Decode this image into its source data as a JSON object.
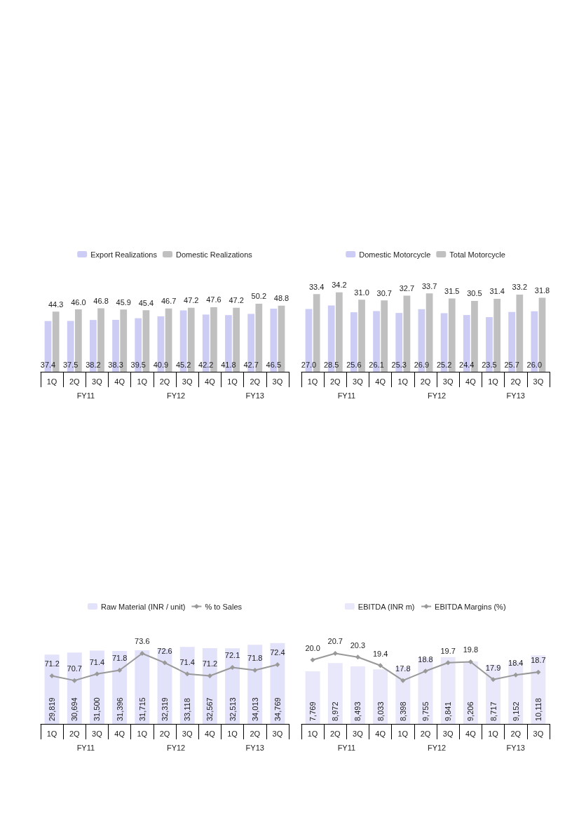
{
  "chart_data": [
    {
      "type": "bar",
      "legend": "top",
      "annotations": [
        "FY11",
        "FY12",
        "FY13"
      ],
      "categories": [
        "1Q",
        "2Q",
        "3Q",
        "4Q",
        "1Q",
        "2Q",
        "3Q",
        "4Q",
        "1Q",
        "2Q",
        "3Q"
      ],
      "series": [
        {
          "name": "Export Realizations",
          "color": "#ccccf5",
          "values": [
            37.4,
            37.5,
            38.2,
            38.3,
            39.5,
            40.9,
            45.2,
            42.2,
            41.8,
            42.7,
            46.5
          ],
          "value_labels": [
            "37.4",
            "37.5",
            "38.2",
            "38.3",
            "39.5",
            "40.9",
            "45.2",
            "42.2",
            "41.8",
            "42.7",
            "46.5"
          ]
        },
        {
          "name": "Domestic Realizations",
          "color": "#c0c0c0",
          "values": [
            44.3,
            46.0,
            46.8,
            45.9,
            45.4,
            46.7,
            47.2,
            47.6,
            47.2,
            50.2,
            48.8
          ],
          "value_labels": [
            "44.3",
            "46.0",
            "46.8",
            "45.9",
            "45.4",
            "46.7",
            "47.2",
            "47.6",
            "47.2",
            "50.2",
            "48.8"
          ]
        }
      ]
    },
    {
      "type": "bar",
      "legend": "top",
      "annotations": [
        "FY11",
        "FY12",
        "FY13"
      ],
      "categories": [
        "1Q",
        "2Q",
        "3Q",
        "4Q",
        "1Q",
        "2Q",
        "3Q",
        "4Q",
        "1Q",
        "2Q",
        "3Q"
      ],
      "series": [
        {
          "name": "Domestic Motorcycle",
          "color": "#ccccf5",
          "values": [
            27.0,
            28.5,
            25.6,
            26.1,
            25.3,
            26.9,
            25.2,
            24.4,
            23.5,
            25.7,
            26.0
          ],
          "value_labels": [
            "27.0",
            "28.5",
            "25.6",
            "26.1",
            "25.3",
            "26.9",
            "25.2",
            "24.4",
            "23.5",
            "25.7",
            "26.0"
          ]
        },
        {
          "name": "Total Motorcycle",
          "color": "#c0c0c0",
          "values": [
            33.4,
            34.2,
            31.0,
            30.7,
            32.7,
            33.7,
            31.5,
            30.5,
            31.4,
            33.2,
            31.8
          ],
          "value_labels": [
            "33.4",
            "34.2",
            "31.0",
            "30.7",
            "32.7",
            "33.7",
            "31.5",
            "30.5",
            "31.4",
            "33.2",
            "31.8"
          ]
        }
      ]
    },
    {
      "type": "bar",
      "legend": "top",
      "marker": "diamond",
      "annotations": [
        "FY11",
        "FY12",
        "FY13"
      ],
      "categories": [
        "1Q",
        "2Q",
        "3Q",
        "4Q",
        "1Q",
        "2Q",
        "3Q",
        "4Q",
        "1Q",
        "2Q",
        "3Q"
      ],
      "series": [
        {
          "name": "Raw Material (INR / unit)",
          "color": "#e2e2fa",
          "values": [
            29819,
            30694,
            31500,
            31396,
            31715,
            32319,
            33118,
            32567,
            32513,
            34013,
            34769
          ],
          "value_labels": [
            "29,819",
            "30,694",
            "31,500",
            "31,396",
            "31,715",
            "32,319",
            "33,118",
            "32,567",
            "32,513",
            "34,013",
            "34,769"
          ]
        },
        {
          "name": "% to Sales",
          "type": "line",
          "axis": "y2",
          "color": "#999999",
          "values": [
            71.2,
            70.7,
            71.4,
            71.8,
            73.6,
            72.6,
            71.4,
            71.2,
            72.1,
            71.8,
            72.4
          ],
          "value_labels": [
            "71.2",
            "70.7",
            "71.4",
            "71.8",
            "73.6",
            "72.6",
            "71.4",
            "71.2",
            "72.1",
            "71.8",
            "72.4"
          ]
        }
      ]
    },
    {
      "type": "bar",
      "legend": "top",
      "marker": "diamond",
      "annotations": [
        "FY11",
        "FY12",
        "FY13"
      ],
      "categories": [
        "1Q",
        "2Q",
        "3Q",
        "4Q",
        "1Q",
        "2Q",
        "3Q",
        "4Q",
        "1Q",
        "2Q",
        "3Q"
      ],
      "series": [
        {
          "name": "EBITDA (INR m)",
          "color": "#e8e8fa",
          "values": [
            7769,
            8972,
            8493,
            8033,
            8398,
            9755,
            9841,
            9206,
            8717,
            9152,
            10118
          ],
          "value_labels": [
            "7,769",
            "8,972",
            "8,493",
            "8,033",
            "8,398",
            "9,755",
            "9,841",
            "9,206",
            "8,717",
            "9,152",
            "10,118"
          ]
        },
        {
          "name": "EBITDA Margins (%)",
          "type": "line",
          "axis": "y2",
          "color": "#999999",
          "values": [
            20.0,
            20.7,
            20.3,
            19.4,
            17.8,
            18.8,
            19.7,
            19.8,
            17.9,
            18.4,
            18.7
          ],
          "value_labels": [
            "20.0",
            "20.7",
            "20.3",
            "19.4",
            "17.8",
            "18.8",
            "19.7",
            "19.8",
            "17.9",
            "18.4",
            "18.7"
          ]
        }
      ]
    }
  ]
}
